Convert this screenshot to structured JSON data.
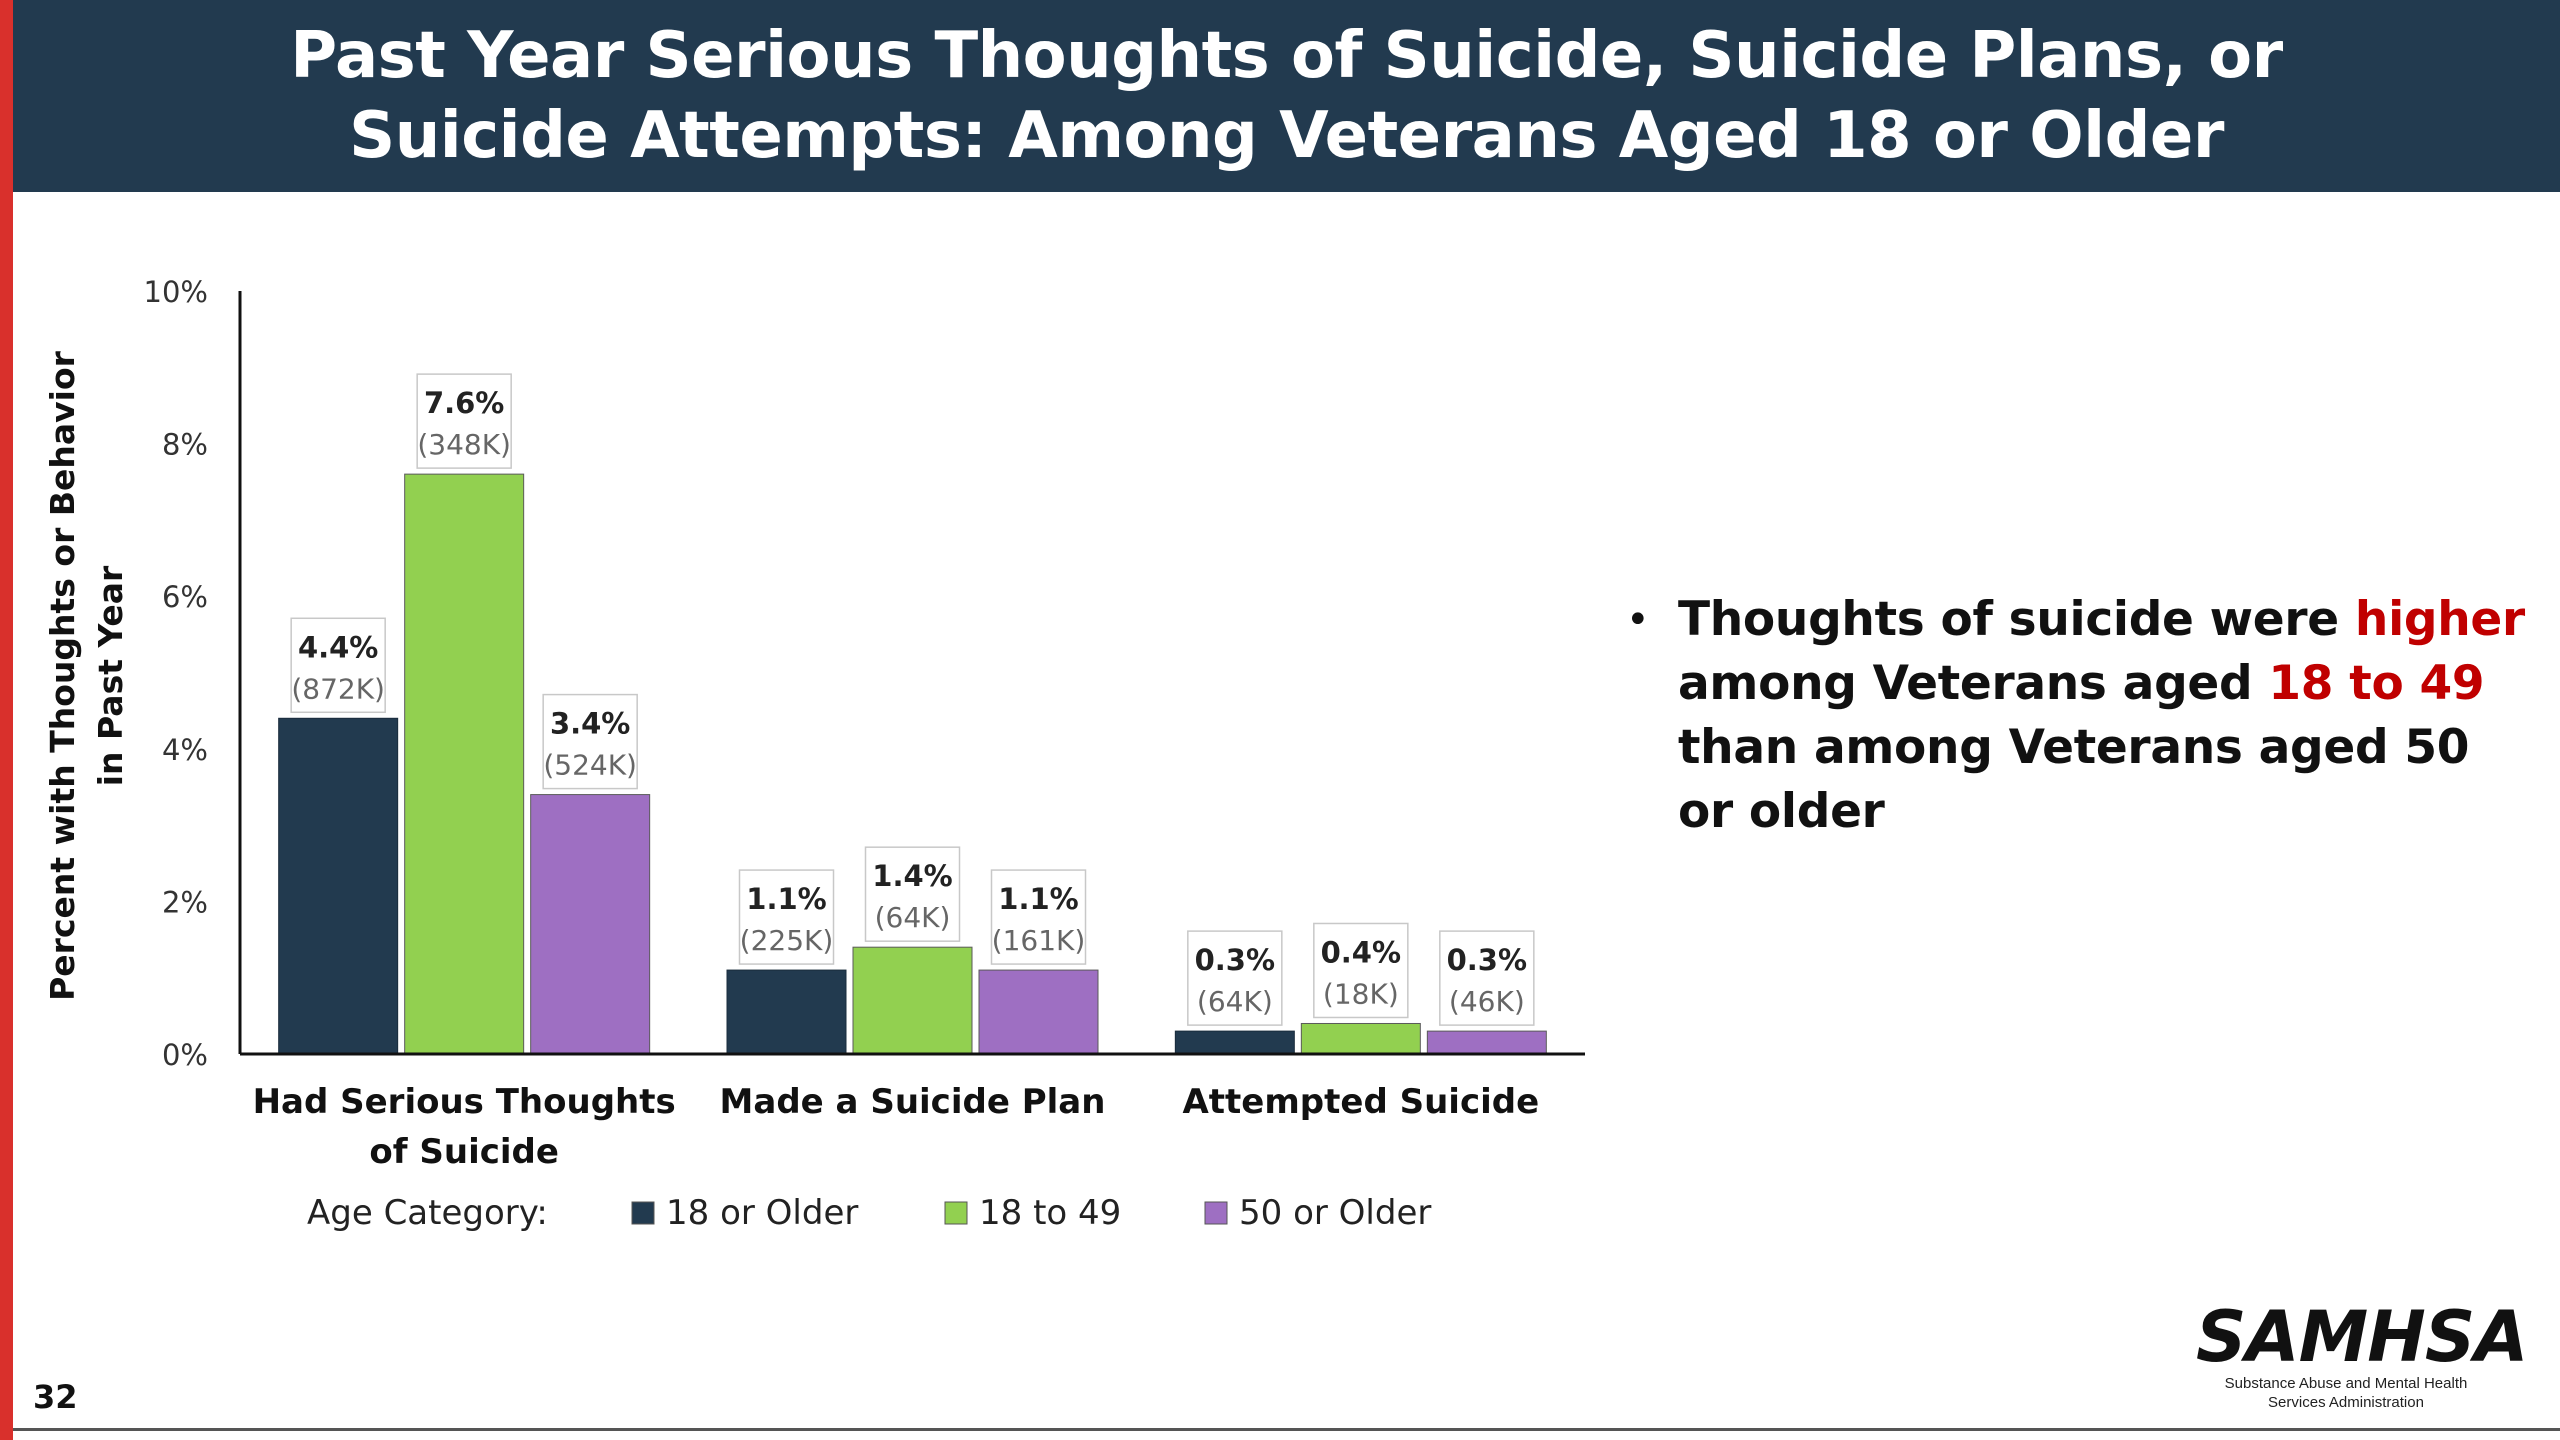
{
  "title": {
    "line1": "Past Year Serious Thoughts of Suicide, Suicide Plans, or",
    "line2": "Suicide Attempts: Among Veterans Aged 18 or Older"
  },
  "chart_data": {
    "type": "bar",
    "categories": [
      [
        "Had Serious Thoughts",
        "of Suicide"
      ],
      [
        "Made a Suicide Plan"
      ],
      [
        "Attempted Suicide"
      ]
    ],
    "series": [
      {
        "name": "18 or Older",
        "color": "#223a4f",
        "values": [
          4.4,
          1.1,
          0.3
        ],
        "labels": [
          "4.4%",
          "1.1%",
          "0.3%"
        ],
        "counts": [
          "(872K)",
          "(225K)",
          "(64K)"
        ]
      },
      {
        "name": "18 to 49",
        "color": "#92d050",
        "values": [
          7.6,
          1.4,
          0.4
        ],
        "labels": [
          "7.6%",
          "1.4%",
          "0.4%"
        ],
        "counts": [
          "(348K)",
          "(64K)",
          "(18K)"
        ]
      },
      {
        "name": "50 or Older",
        "color": "#9e6fc2",
        "values": [
          3.4,
          1.1,
          0.3
        ],
        "labels": [
          "3.4%",
          "1.1%",
          "0.3%"
        ],
        "counts": [
          "(524K)",
          "(161K)",
          "(46K)"
        ]
      }
    ],
    "ylabel": [
      "Percent with Thoughts or Behavior",
      "in Past Year"
    ],
    "ylim": [
      0,
      10
    ],
    "yticks": [
      0,
      2,
      4,
      6,
      8,
      10
    ],
    "ytick_labels": [
      "0%",
      "2%",
      "4%",
      "6%",
      "8%",
      "10%"
    ],
    "grid": false,
    "legend": {
      "title": "Age Category:",
      "placement": "bottom"
    }
  },
  "bullet": {
    "part1": "Thoughts of suicide were ",
    "highlight1": "higher",
    "part2": " among Veterans aged ",
    "highlight2": "18 to 49",
    "part3": " than among Veterans aged 50 or older",
    "highlight_color": "#c00000"
  },
  "page_number": "32",
  "logo": {
    "mark": "SAMHSA",
    "sub1": "Substance Abuse and Mental Health",
    "sub2": "Services Administration"
  },
  "colors": {
    "title_bar": "#223a4f",
    "accent": "#d9302c"
  }
}
